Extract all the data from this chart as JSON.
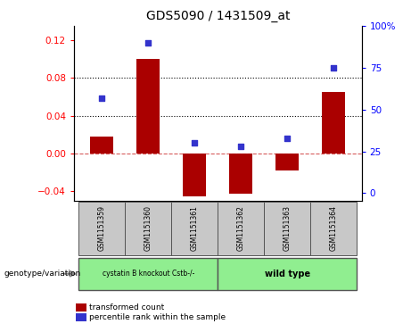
{
  "title": "GDS5090 / 1431509_at",
  "samples": [
    "GSM1151359",
    "GSM1151360",
    "GSM1151361",
    "GSM1151362",
    "GSM1151363",
    "GSM1151364"
  ],
  "red_bars": [
    0.018,
    0.1,
    -0.045,
    -0.042,
    -0.018,
    0.065
  ],
  "blue_dots": [
    57,
    90,
    30,
    28,
    33,
    75
  ],
  "ylim_left": [
    -0.05,
    0.135
  ],
  "ylim_right": [
    -4.6296,
    100
  ],
  "yticks_left": [
    -0.04,
    0.0,
    0.04,
    0.08,
    0.12
  ],
  "yticks_right": [
    0,
    25,
    50,
    75,
    100
  ],
  "ytick_labels_right": [
    "0",
    "25",
    "50",
    "75",
    "100%"
  ],
  "hlines": [
    0.04,
    0.08
  ],
  "bar_color": "#AA0000",
  "dot_color": "#3333CC",
  "group1_label": "cystatin B knockout Cstb-/-",
  "group2_label": "wild type",
  "group1_indices": [
    0,
    1,
    2
  ],
  "group2_indices": [
    3,
    4,
    5
  ],
  "group1_color": "#90EE90",
  "group2_color": "#90EE90",
  "genotype_label": "genotype/variation",
  "legend_red": "transformed count",
  "legend_blue": "percentile rank within the sample",
  "title_fontsize": 10,
  "gray_bg": "#C8C8C8"
}
